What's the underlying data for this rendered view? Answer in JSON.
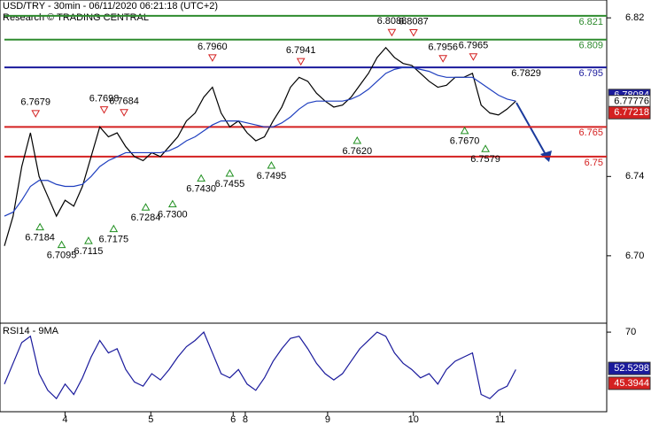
{
  "header": {
    "title": "USD/TRY - 30min - 06/11/2020 06:21:18 (UTC+2)",
    "subtitle": "Research © TRADING CENTRAL"
  },
  "chart_data": [
    {
      "type": "line",
      "ylim": [
        6.666,
        6.829
      ],
      "xlim": [
        0,
        70
      ],
      "yticks": [
        {
          "value": 6.7,
          "label": "6.70"
        },
        6.74,
        6.82
      ],
      "xticks": [
        {
          "value": 7.5,
          "label": "4"
        },
        {
          "value": 17.4,
          "label": "5"
        },
        {
          "value": 26.9,
          "label": "6"
        },
        {
          "value": 28.3,
          "label": "8"
        },
        {
          "value": 37.8,
          "label": "9"
        },
        {
          "value": 47.7,
          "label": "10"
        },
        {
          "value": 57.7,
          "label": "11"
        }
      ],
      "x": [
        0,
        1,
        2,
        3,
        4,
        5,
        6,
        7,
        8,
        9,
        10,
        11,
        12,
        13,
        14,
        15,
        16,
        17,
        18,
        19,
        20,
        21,
        22,
        23,
        24,
        25,
        26,
        27,
        28,
        29,
        30,
        31,
        32,
        33,
        34,
        35,
        36,
        37,
        38,
        39,
        40,
        41,
        42,
        43,
        44,
        45,
        46,
        47,
        48,
        49,
        50,
        51,
        52,
        53,
        54,
        55,
        56,
        57,
        58,
        59
      ],
      "series": [
        {
          "color": "#000000",
          "values": [
            6.705,
            6.72,
            6.745,
            6.762,
            6.74,
            6.73,
            6.72,
            6.728,
            6.725,
            6.735,
            6.75,
            6.765,
            6.76,
            6.762,
            6.755,
            6.75,
            6.748,
            6.752,
            6.75,
            6.755,
            6.76,
            6.768,
            6.772,
            6.78,
            6.785,
            6.772,
            6.765,
            6.768,
            6.762,
            6.758,
            6.76,
            6.768,
            6.775,
            6.785,
            6.79,
            6.788,
            6.782,
            6.778,
            6.775,
            6.776,
            6.78,
            6.786,
            6.792,
            6.8,
            6.805,
            6.8,
            6.797,
            6.796,
            6.792,
            6.788,
            6.785,
            6.786,
            6.79,
            6.79,
            6.792,
            6.776,
            6.772,
            6.771,
            6.774,
            6.778
          ]
        },
        {
          "color": "#1f3fbf",
          "values": [
            6.72,
            6.722,
            6.728,
            6.735,
            6.738,
            6.738,
            6.736,
            6.735,
            6.735,
            6.736,
            6.74,
            6.745,
            6.748,
            6.75,
            6.752,
            6.752,
            6.752,
            6.752,
            6.752,
            6.753,
            6.755,
            6.758,
            6.76,
            6.763,
            6.766,
            6.768,
            6.768,
            6.768,
            6.767,
            6.766,
            6.765,
            6.765,
            6.767,
            6.77,
            6.774,
            6.777,
            6.778,
            6.778,
            6.778,
            6.778,
            6.779,
            6.781,
            6.784,
            6.788,
            6.792,
            6.794,
            6.795,
            6.795,
            6.794,
            6.793,
            6.791,
            6.79,
            6.79,
            6.79,
            6.79,
            6.787,
            6.784,
            6.781,
            6.779,
            6.778
          ]
        }
      ],
      "levels": [
        {
          "value": 6.821,
          "color": "#2e8b2e"
        },
        {
          "value": 6.809,
          "color": "#2e8b2e"
        },
        {
          "value": 6.795,
          "color": "#1a1a9c"
        },
        {
          "value": 6.765,
          "color": "#d42020"
        },
        {
          "value": 6.75,
          "color": "#d42020"
        }
      ],
      "price_tags": [
        {
          "value": 6.78084,
          "color": "#1a1a9c"
        },
        {
          "value": 6.77776,
          "color": "#ffffff"
        },
        {
          "value": 6.77218,
          "color": "#d42020"
        }
      ],
      "annotations": [
        {
          "x": 3.6,
          "value": 6.7679,
          "label": "6.7679",
          "kind": "high"
        },
        {
          "x": 4.1,
          "value": 6.7184,
          "label": "6.7184",
          "kind": "low"
        },
        {
          "x": 6.6,
          "value": 6.7095,
          "label": "6.7095",
          "kind": "low"
        },
        {
          "x": 9.7,
          "value": 6.7115,
          "label": "6.7115",
          "kind": "low"
        },
        {
          "x": 11.5,
          "value": 6.7698,
          "label": "6.7698",
          "kind": "high"
        },
        {
          "x": 13.8,
          "value": 6.7684,
          "label": "6.7684",
          "kind": "high"
        },
        {
          "x": 12.6,
          "value": 6.7175,
          "label": "6.7175",
          "kind": "low"
        },
        {
          "x": 16.3,
          "value": 6.7284,
          "label": "6.7284",
          "kind": "low"
        },
        {
          "x": 19.4,
          "value": 6.73,
          "label": "6.7300",
          "kind": "low"
        },
        {
          "x": 22.7,
          "value": 6.743,
          "label": "6.7430",
          "kind": "low"
        },
        {
          "x": 24,
          "value": 6.796,
          "label": "6.7960",
          "kind": "high"
        },
        {
          "x": 26,
          "value": 6.7455,
          "label": "6.7455",
          "kind": "low"
        },
        {
          "x": 30.8,
          "value": 6.7495,
          "label": "6.7495",
          "kind": "low"
        },
        {
          "x": 34.2,
          "value": 6.7941,
          "label": "6.7941",
          "kind": "high"
        },
        {
          "x": 40.7,
          "value": 6.762,
          "label": "6.7620",
          "kind": "low"
        },
        {
          "x": 44.7,
          "value": 6.8088,
          "label": "6.8088",
          "kind": "high"
        },
        {
          "x": 47.2,
          "value": 6.8087,
          "label": "6.8087",
          "kind": "high"
        },
        {
          "x": 50.6,
          "value": 6.7956,
          "label": "6.7956",
          "kind": "high"
        },
        {
          "x": 54.1,
          "value": 6.7965,
          "label": "6.7965",
          "kind": "high"
        },
        {
          "x": 53.1,
          "value": 6.767,
          "label": "6.7670",
          "kind": "low"
        },
        {
          "x": 55.5,
          "value": 6.7579,
          "label": "6.7579",
          "kind": "low"
        },
        {
          "x": 60.2,
          "value": 6.7829,
          "label": "6.7829",
          "kind": "note"
        }
      ]
    },
    {
      "type": "line",
      "title": "RSI14 - 9MA",
      "ylim": [
        31.7,
        74.3
      ],
      "yticks": [
        70
      ],
      "series": [
        {
          "color": "#1a1a9c",
          "values": [
            45,
            55,
            65,
            68,
            50,
            42,
            38,
            45,
            40,
            48,
            58,
            66,
            60,
            62,
            52,
            46,
            44,
            50,
            47,
            52,
            58,
            63,
            66,
            70,
            60,
            50,
            48,
            52,
            45,
            42,
            48,
            56,
            62,
            67,
            68,
            62,
            55,
            50,
            47,
            50,
            56,
            62,
            66,
            70,
            68,
            60,
            55,
            52,
            48,
            50,
            45,
            52,
            56,
            58,
            60,
            40,
            38,
            42,
            44,
            52
          ]
        }
      ],
      "price_tags": [
        {
          "value": 52.5298,
          "color": "#1a1a9c"
        },
        {
          "value": 45.3944,
          "color": "#d42020"
        }
      ]
    }
  ]
}
